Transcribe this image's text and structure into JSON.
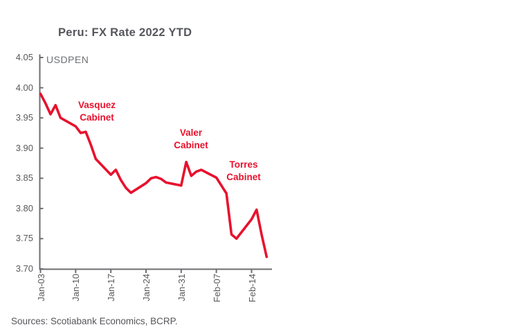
{
  "title": "Peru: FX Rate 2022 YTD",
  "series_label": "USDPEN",
  "source": "Sources: Scotiabank Economics, BCRP.",
  "colors": {
    "line": "#e8112d",
    "annotation_text": "#e8112d",
    "title_text": "#54565b",
    "axis": "#6d6e71",
    "tick_label": "#58595b",
    "background": "#ffffff"
  },
  "chart_data": {
    "type": "line",
    "title": "Peru: FX Rate 2022 YTD",
    "inner_label": "USDPEN",
    "grid": false,
    "legend": "none",
    "y_axis": {
      "tick_labels": [
        "4.05",
        "4.00",
        "3.95",
        "3.90",
        "3.85",
        "3.80",
        "3.75",
        "3.70"
      ],
      "tick_values": [
        4.05,
        4.0,
        3.95,
        3.9,
        3.85,
        3.8,
        3.75,
        3.7
      ],
      "range": [
        3.7,
        4.05
      ]
    },
    "x_axis": {
      "tick_labels": [
        "Jan-03",
        "Jan-10",
        "Jan-17",
        "Jan-24",
        "Jan-31",
        "Feb-07",
        "Feb-14"
      ],
      "tick_day_offsets": [
        0,
        7,
        14,
        21,
        28,
        35,
        42
      ]
    },
    "series": [
      {
        "name": "USDPEN",
        "color": "#e8112d",
        "dates": [
          "Jan-03",
          "Jan-04",
          "Jan-05",
          "Jan-06",
          "Jan-07",
          "Jan-10",
          "Jan-11",
          "Jan-12",
          "Jan-13",
          "Jan-14",
          "Jan-17",
          "Jan-18",
          "Jan-19",
          "Jan-20",
          "Jan-21",
          "Jan-24",
          "Jan-25",
          "Jan-26",
          "Jan-27",
          "Jan-28",
          "Jan-31",
          "Feb-01",
          "Feb-02",
          "Feb-03",
          "Feb-04",
          "Feb-07",
          "Feb-08",
          "Feb-09",
          "Feb-10",
          "Feb-11",
          "Feb-14",
          "Feb-15",
          "Feb-16",
          "Feb-17"
        ],
        "day_offsets": [
          0,
          1,
          2,
          3,
          4,
          7,
          8,
          9,
          10,
          11,
          14,
          15,
          16,
          17,
          18,
          21,
          22,
          23,
          24,
          25,
          28,
          29,
          30,
          31,
          32,
          35,
          36,
          37,
          38,
          39,
          42,
          43,
          44,
          45
        ],
        "values": [
          3.99,
          3.974,
          3.956,
          3.971,
          3.95,
          3.936,
          3.925,
          3.927,
          3.906,
          3.882,
          3.856,
          3.864,
          3.847,
          3.834,
          3.826,
          3.842,
          3.85,
          3.852,
          3.849,
          3.843,
          3.838,
          3.877,
          3.854,
          3.861,
          3.864,
          3.851,
          3.838,
          3.825,
          3.757,
          3.75,
          3.782,
          3.798,
          3.757,
          3.72
        ]
      }
    ],
    "annotations": [
      {
        "text": "Vasquez\nCabinet"
      },
      {
        "text": "Valer\nCabinet"
      },
      {
        "text": "Torres\nCabinet"
      }
    ]
  }
}
